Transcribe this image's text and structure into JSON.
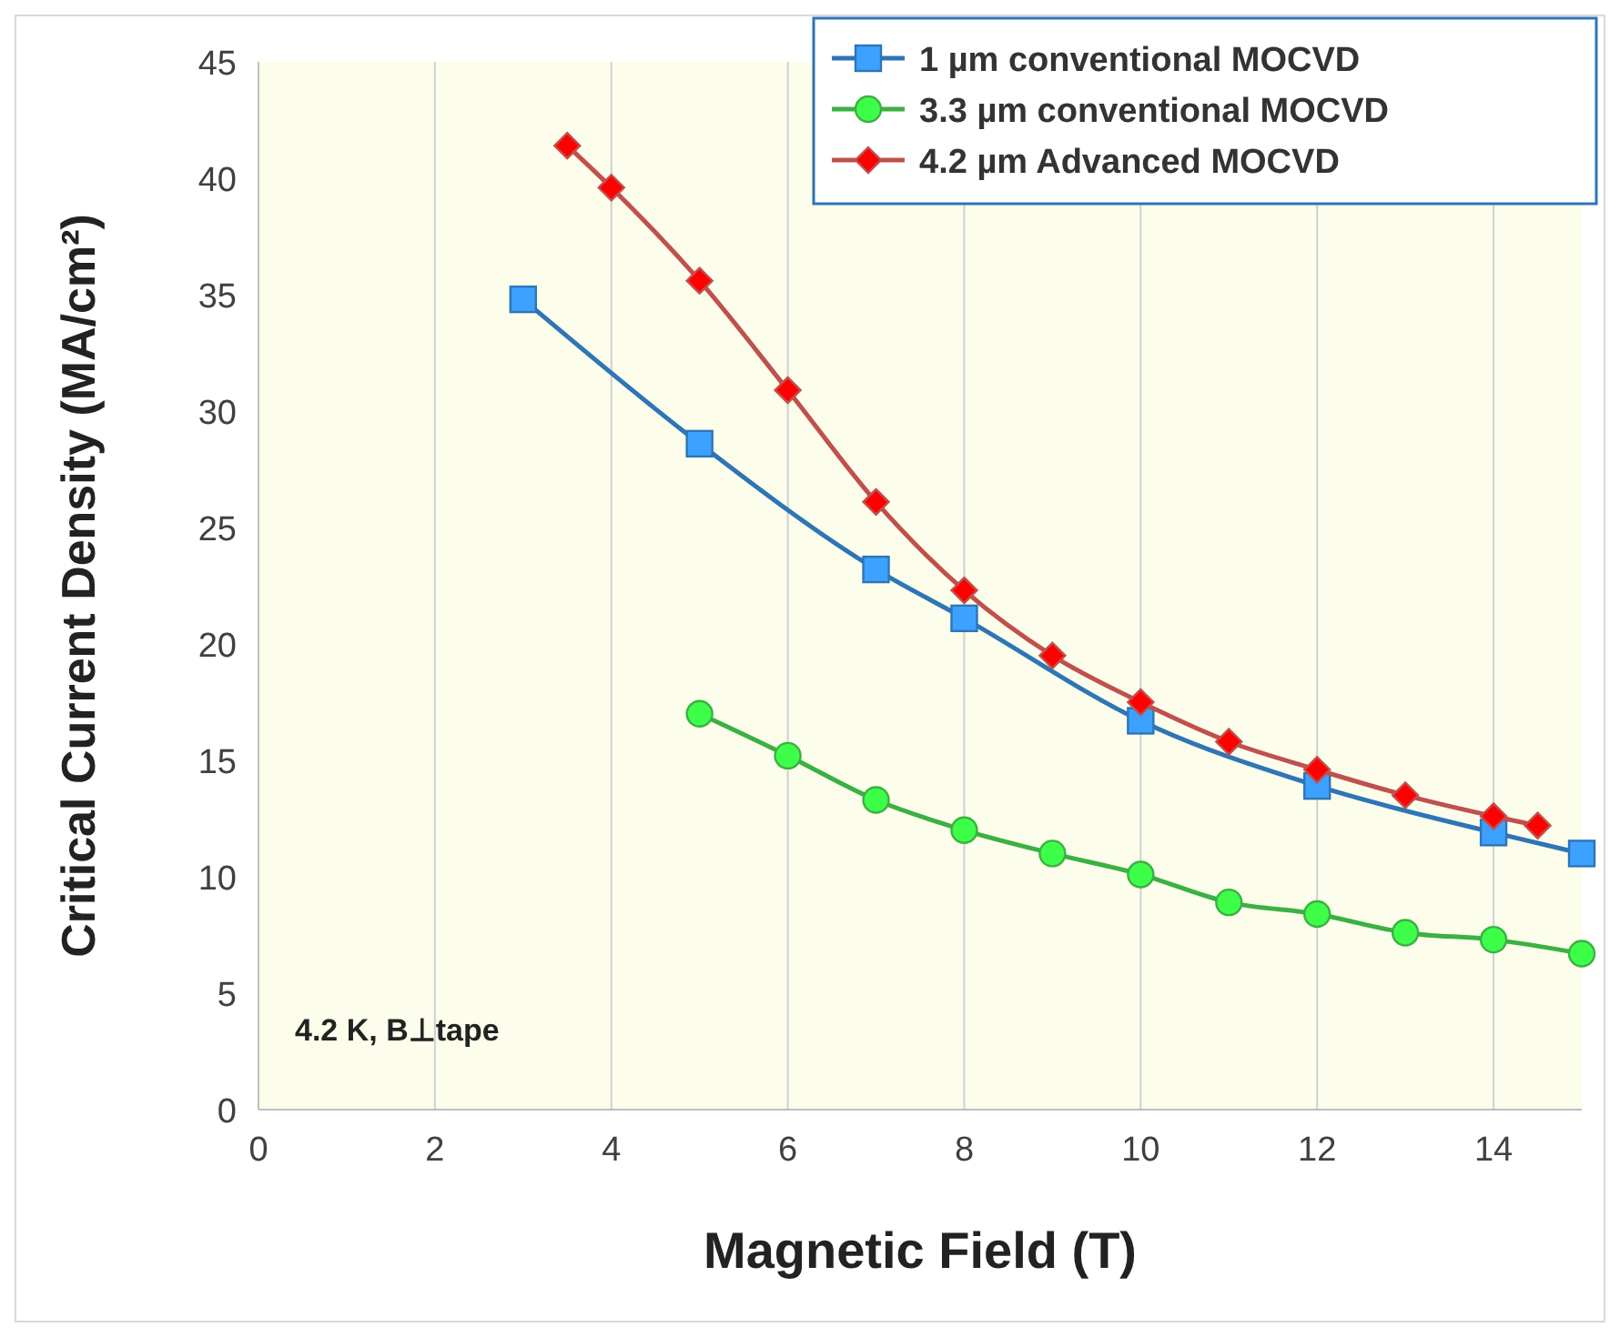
{
  "chart_data": {
    "type": "line",
    "xlabel": "Magnetic Field (T)",
    "ylabel": "Critical Current Density (MA/cm²)",
    "xlim": [
      0,
      15
    ],
    "xticks": [
      0,
      2,
      4,
      6,
      8,
      10,
      12,
      14
    ],
    "ylim": [
      0,
      45
    ],
    "yticks": [
      0,
      5,
      10,
      15,
      20,
      25,
      30,
      35,
      40,
      45
    ],
    "grid": "x",
    "legend": "top right",
    "line_style": "solid",
    "annotations": [
      "4.2 K, B⊥tape"
    ],
    "series": [
      {
        "name": "1 µm conventional MOCVD",
        "color": "#2e75b6",
        "marker": "square",
        "x": [
          3,
          5,
          7,
          8,
          10,
          12,
          14,
          15
        ],
        "values": [
          34.8,
          28.6,
          23.2,
          21.1,
          16.7,
          13.9,
          11.9,
          11.0
        ]
      },
      {
        "name": "3.3 µm conventional MOCVD",
        "color": "#3cb043",
        "marker": "circle",
        "x": [
          5,
          6,
          7,
          8,
          9,
          10,
          11,
          12,
          13,
          14,
          15
        ],
        "values": [
          17.0,
          15.2,
          13.3,
          12.0,
          11.0,
          10.1,
          8.9,
          8.4,
          7.6,
          7.3,
          6.7
        ]
      },
      {
        "name": "4.2 µm Advanced MOCVD",
        "color": "#c0504d",
        "marker": "diamond",
        "x": [
          3.5,
          4,
          5,
          6,
          7,
          8,
          9,
          10,
          11,
          12,
          13,
          14,
          14.5
        ],
        "values": [
          41.4,
          39.6,
          35.6,
          30.9,
          26.1,
          22.3,
          19.5,
          17.5,
          15.8,
          14.6,
          13.5,
          12.6,
          12.2
        ]
      }
    ]
  }
}
